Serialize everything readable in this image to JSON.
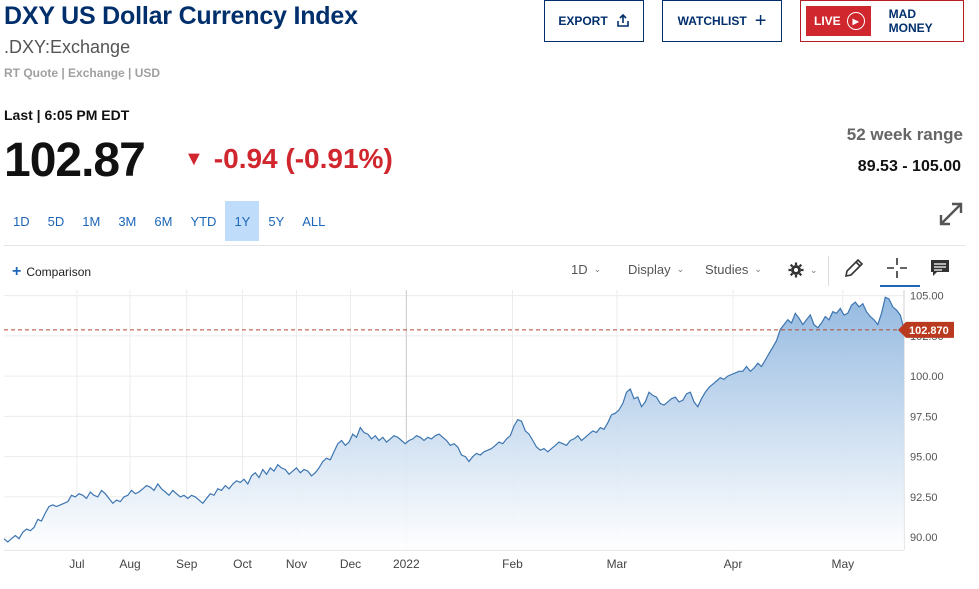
{
  "header": {
    "title": "DXY US Dollar Currency Index",
    "symbol": ".DXY:Exchange",
    "meta": "RT Quote | Exchange | USD"
  },
  "buttons": {
    "export": "EXPORT",
    "watchlist": "WATCHLIST",
    "live": "LIVE",
    "mad_money": "MAD MONEY"
  },
  "quote": {
    "last_label": "Last | 6:05 PM EDT",
    "price": "102.87",
    "change": "-0.94 (-0.91%)",
    "range_label": "52 week range",
    "range_value": "89.53 - 105.00"
  },
  "tabs": [
    {
      "label": "1D",
      "active": false
    },
    {
      "label": "5D",
      "active": false
    },
    {
      "label": "1M",
      "active": false
    },
    {
      "label": "3M",
      "active": false
    },
    {
      "label": "6M",
      "active": false
    },
    {
      "label": "YTD",
      "active": false
    },
    {
      "label": "1Y",
      "active": true
    },
    {
      "label": "5Y",
      "active": false
    },
    {
      "label": "ALL",
      "active": false
    }
  ],
  "toolbar": {
    "comparison": "Comparison",
    "interval": "1D",
    "display": "Display",
    "studies": "Studies"
  },
  "icons": {
    "export": "share-icon",
    "watchlist": "plus-icon",
    "live": "play-icon",
    "settings": "gear-icon",
    "draw": "pencil-icon",
    "crosshair": "crosshair-icon",
    "comment": "comment-icon",
    "expand": "expand-icon"
  },
  "colors": {
    "brand": "#002f6c",
    "down": "#d0262d",
    "link": "#1d66b8",
    "line": "#3d75b0",
    "fill_top": "#9dbfe3",
    "tab_active": "#bfdcfb"
  },
  "chart_data": {
    "type": "area",
    "title": "",
    "xlabel": "",
    "ylabel": "",
    "x_tick_labels": [
      "Jul",
      "Aug",
      "Sep",
      "Oct",
      "Nov",
      "Dec",
      "2022",
      "Feb",
      "Mar",
      "Apr",
      "May"
    ],
    "y_tick_labels": [
      "105.00",
      "102.50",
      "100.00",
      "97.50",
      "95.00",
      "92.50",
      "90.00"
    ],
    "y_ticks": [
      105.0,
      102.5,
      100.0,
      97.5,
      95.0,
      92.5,
      90.0
    ],
    "ylim": [
      89.2,
      105.35
    ],
    "last_value": 102.87,
    "last_value_label": "102.870",
    "grid": true,
    "legend": "none",
    "series": [
      {
        "values": [
          89.9,
          89.7,
          89.9,
          90.1,
          89.9,
          90.3,
          90.5,
          90.4,
          90.6,
          91.1,
          91.0,
          91.5,
          91.9,
          92.0,
          91.9,
          92.0,
          92.1,
          92.2,
          92.6,
          92.5,
          92.7,
          92.6,
          92.4,
          92.8,
          92.6,
          92.5,
          92.9,
          92.7,
          92.4,
          92.1,
          92.3,
          92.2,
          92.5,
          92.6,
          92.9,
          92.7,
          92.8,
          93.0,
          93.2,
          93.1,
          92.9,
          93.3,
          93.0,
          92.8,
          92.6,
          92.9,
          92.7,
          92.5,
          92.6,
          92.4,
          92.6,
          92.5,
          92.3,
          92.1,
          92.4,
          92.7,
          92.6,
          93.0,
          92.9,
          93.2,
          93.0,
          93.3,
          93.5,
          93.4,
          93.6,
          93.3,
          93.8,
          94.0,
          93.7,
          94.2,
          93.9,
          94.3,
          94.1,
          94.5,
          94.3,
          94.2,
          93.9,
          94.1,
          94.3,
          94.0,
          94.2,
          94.1,
          93.8,
          94.0,
          94.3,
          94.7,
          94.9,
          94.8,
          95.3,
          95.8,
          96.0,
          95.7,
          95.9,
          96.4,
          96.2,
          96.8,
          96.5,
          96.4,
          96.1,
          96.3,
          96.0,
          96.2,
          95.9,
          96.1,
          96.3,
          96.2,
          96.0,
          95.8,
          96.0,
          96.1,
          96.3,
          96.2,
          96.0,
          96.2,
          96.1,
          96.3,
          96.4,
          96.2,
          96.0,
          95.7,
          95.8,
          95.6,
          95.1,
          95.0,
          94.7,
          95.0,
          95.2,
          95.1,
          95.3,
          95.4,
          95.5,
          95.7,
          95.9,
          95.8,
          96.1,
          96.3,
          96.9,
          97.3,
          97.2,
          96.6,
          96.4,
          96.0,
          95.6,
          95.4,
          95.5,
          95.3,
          95.5,
          95.7,
          95.9,
          95.8,
          95.7,
          96.0,
          96.1,
          96.3,
          96.0,
          96.2,
          96.4,
          96.6,
          96.5,
          96.8,
          96.7,
          97.1,
          97.6,
          97.7,
          97.9,
          98.3,
          99.0,
          99.2,
          98.6,
          98.7,
          98.1,
          98.4,
          99.0,
          98.8,
          98.7,
          98.3,
          98.2,
          98.4,
          98.6,
          98.7,
          98.4,
          98.5,
          98.9,
          99.0,
          98.4,
          98.1,
          98.6,
          99.0,
          99.3,
          99.5,
          99.7,
          99.9,
          99.8,
          100.0,
          100.1,
          100.2,
          100.3,
          100.3,
          100.6,
          100.3,
          100.5,
          100.8,
          100.6,
          101.0,
          101.4,
          101.8,
          102.2,
          102.9,
          103.2,
          103.5,
          103.3,
          103.9,
          103.6,
          103.2,
          103.5,
          103.8,
          103.2,
          103.0,
          103.3,
          103.7,
          103.5,
          104.0,
          103.9,
          104.2,
          103.8,
          103.9,
          104.4,
          104.6,
          104.3,
          104.5,
          104.0,
          103.7,
          103.5,
          103.2,
          103.9,
          104.9,
          104.8,
          104.3,
          104.1,
          103.8,
          102.9
        ]
      }
    ]
  }
}
